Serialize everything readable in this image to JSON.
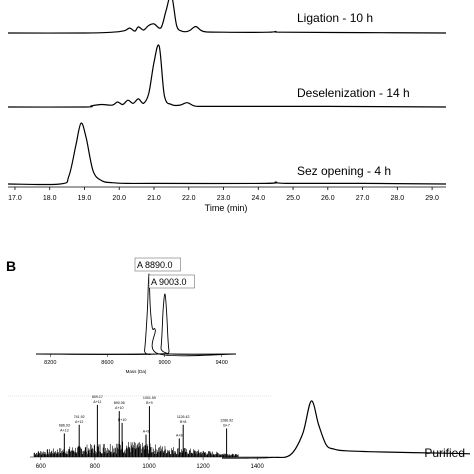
{
  "panel_b_label": "B",
  "chart_data": [
    {
      "type": "line",
      "panel": "A",
      "xlabel": "Time (min)",
      "xlim": [
        16.8,
        29.4
      ],
      "x_ticks": [
        "17.0",
        "18.0",
        "19.0",
        "20.0",
        "21.0",
        "22.0",
        "23.0",
        "24.0",
        "25.0",
        "26.0",
        "27.0",
        "28.0",
        "29.0"
      ],
      "series": [
        {
          "name": "Ligation - 10 h",
          "x": [
            16.8,
            19.0,
            19.8,
            20.15,
            20.3,
            20.45,
            20.55,
            20.7,
            20.85,
            21.0,
            21.2,
            21.35,
            21.5,
            21.65,
            21.8,
            21.95,
            22.05,
            22.2,
            22.35,
            22.5,
            23.0,
            24.3,
            24.5,
            24.7,
            27.0,
            29.4
          ],
          "y": [
            0,
            0,
            0.02,
            0.06,
            0.13,
            0.05,
            0.16,
            0.08,
            0.2,
            0.24,
            0.14,
            0.6,
            1.0,
            0.2,
            0.05,
            0.04,
            0.08,
            0.17,
            0.07,
            0.03,
            0.02,
            0.02,
            0.04,
            0.02,
            0.01,
            0
          ]
        },
        {
          "name": "Deselenization - 14 h",
          "x": [
            16.8,
            19.0,
            19.2,
            19.5,
            19.8,
            19.95,
            20.1,
            20.25,
            20.4,
            20.55,
            20.7,
            20.85,
            21.0,
            21.15,
            21.3,
            21.5,
            21.75,
            21.95,
            22.15,
            22.4,
            23.5,
            26.0,
            29.4
          ],
          "y": [
            0,
            0,
            0.02,
            0.04,
            0.03,
            0.08,
            0.04,
            0.11,
            0.06,
            0.13,
            0.06,
            0.22,
            0.72,
            0.98,
            0.18,
            0.04,
            0.03,
            0.07,
            0.02,
            0.01,
            0.01,
            0.01,
            0
          ]
        },
        {
          "name": "Sez opening - 4 h",
          "x": [
            16.8,
            18.3,
            18.55,
            18.75,
            18.9,
            19.05,
            19.25,
            19.5,
            19.8,
            20.2,
            21.0,
            24.2,
            24.5,
            24.8,
            27.0,
            29.4
          ],
          "y": [
            0,
            0,
            0.12,
            0.6,
            0.95,
            0.72,
            0.2,
            0.05,
            0.02,
            0.01,
            0.01,
            0.01,
            0.03,
            0.01,
            0.01,
            0
          ]
        }
      ]
    },
    {
      "type": "line",
      "panel": "B-inset",
      "xlabel": "Mass (Da)",
      "xlim": [
        8100,
        9500
      ],
      "x_ticks": [
        "8200",
        "8600",
        "9000",
        "9400"
      ],
      "annotations": [
        "A 8890.0",
        "A 9003.0"
      ],
      "series": [
        {
          "name": "A 8890.0",
          "x": [
            8100,
            8840,
            8860,
            8880,
            8890,
            8900,
            8915,
            8935,
            8960,
            9500
          ],
          "y": [
            0,
            0,
            0.05,
            0.55,
            1.0,
            0.58,
            0.32,
            0.3,
            0,
            0
          ]
        },
        {
          "name": "A 9003.0",
          "x": [
            8100,
            8950,
            8975,
            8990,
            9003,
            9015,
            9030,
            9060,
            9500
          ],
          "y": [
            0,
            0,
            0.08,
            0.55,
            0.75,
            0.5,
            0.05,
            0,
            0
          ]
        }
      ]
    },
    {
      "type": "bar",
      "panel": "B-ms",
      "xlim": [
        560,
        1440
      ],
      "x_ticks": [
        "600",
        "800",
        "1000",
        "1200",
        "1400"
      ],
      "peak_labels": [
        {
          "mz": 686.93,
          "label_top": "686.93",
          "label_bottom": "A+13",
          "height": 0.38
        },
        {
          "mz": 741.92,
          "label_top": "741.92",
          "label_bottom": "A+12",
          "height": 0.52
        },
        {
          "mz": 809.17,
          "label_top": "809.17",
          "label_bottom": "A+11",
          "height": 0.84
        },
        {
          "mz": 890.06,
          "label_top": "890.06",
          "label_bottom": "A+10",
          "height": 0.74
        },
        {
          "mz": 900.5,
          "label_top": "B+10",
          "label_bottom": "",
          "height": 0.55
        },
        {
          "mz": 1001.59,
          "label_top": "1001.59",
          "label_bottom": "B+9",
          "height": 0.82
        },
        {
          "mz": 988.9,
          "label_top": "A+9",
          "label_bottom": "",
          "height": 0.36
        },
        {
          "mz": 1126.42,
          "label_top": "1126.42",
          "label_bottom": "B+8",
          "height": 0.52
        },
        {
          "mz": 1112.0,
          "label_top": "A+8",
          "label_bottom": "",
          "height": 0.3
        },
        {
          "mz": 1286.92,
          "label_top": "1286.92",
          "label_bottom": "B+7",
          "height": 0.46
        }
      ]
    },
    {
      "type": "line",
      "panel": "B-purified",
      "series": [
        {
          "name": "Purified",
          "x": [
            0,
            20,
            40,
            55,
            65,
            72,
            78,
            84,
            90,
            100,
            130,
            180,
            200
          ],
          "y": [
            0,
            0,
            0.01,
            0.05,
            0.4,
            0.95,
            0.55,
            0.22,
            0.15,
            0.12,
            0.1,
            0.08,
            0.07
          ]
        }
      ]
    }
  ]
}
